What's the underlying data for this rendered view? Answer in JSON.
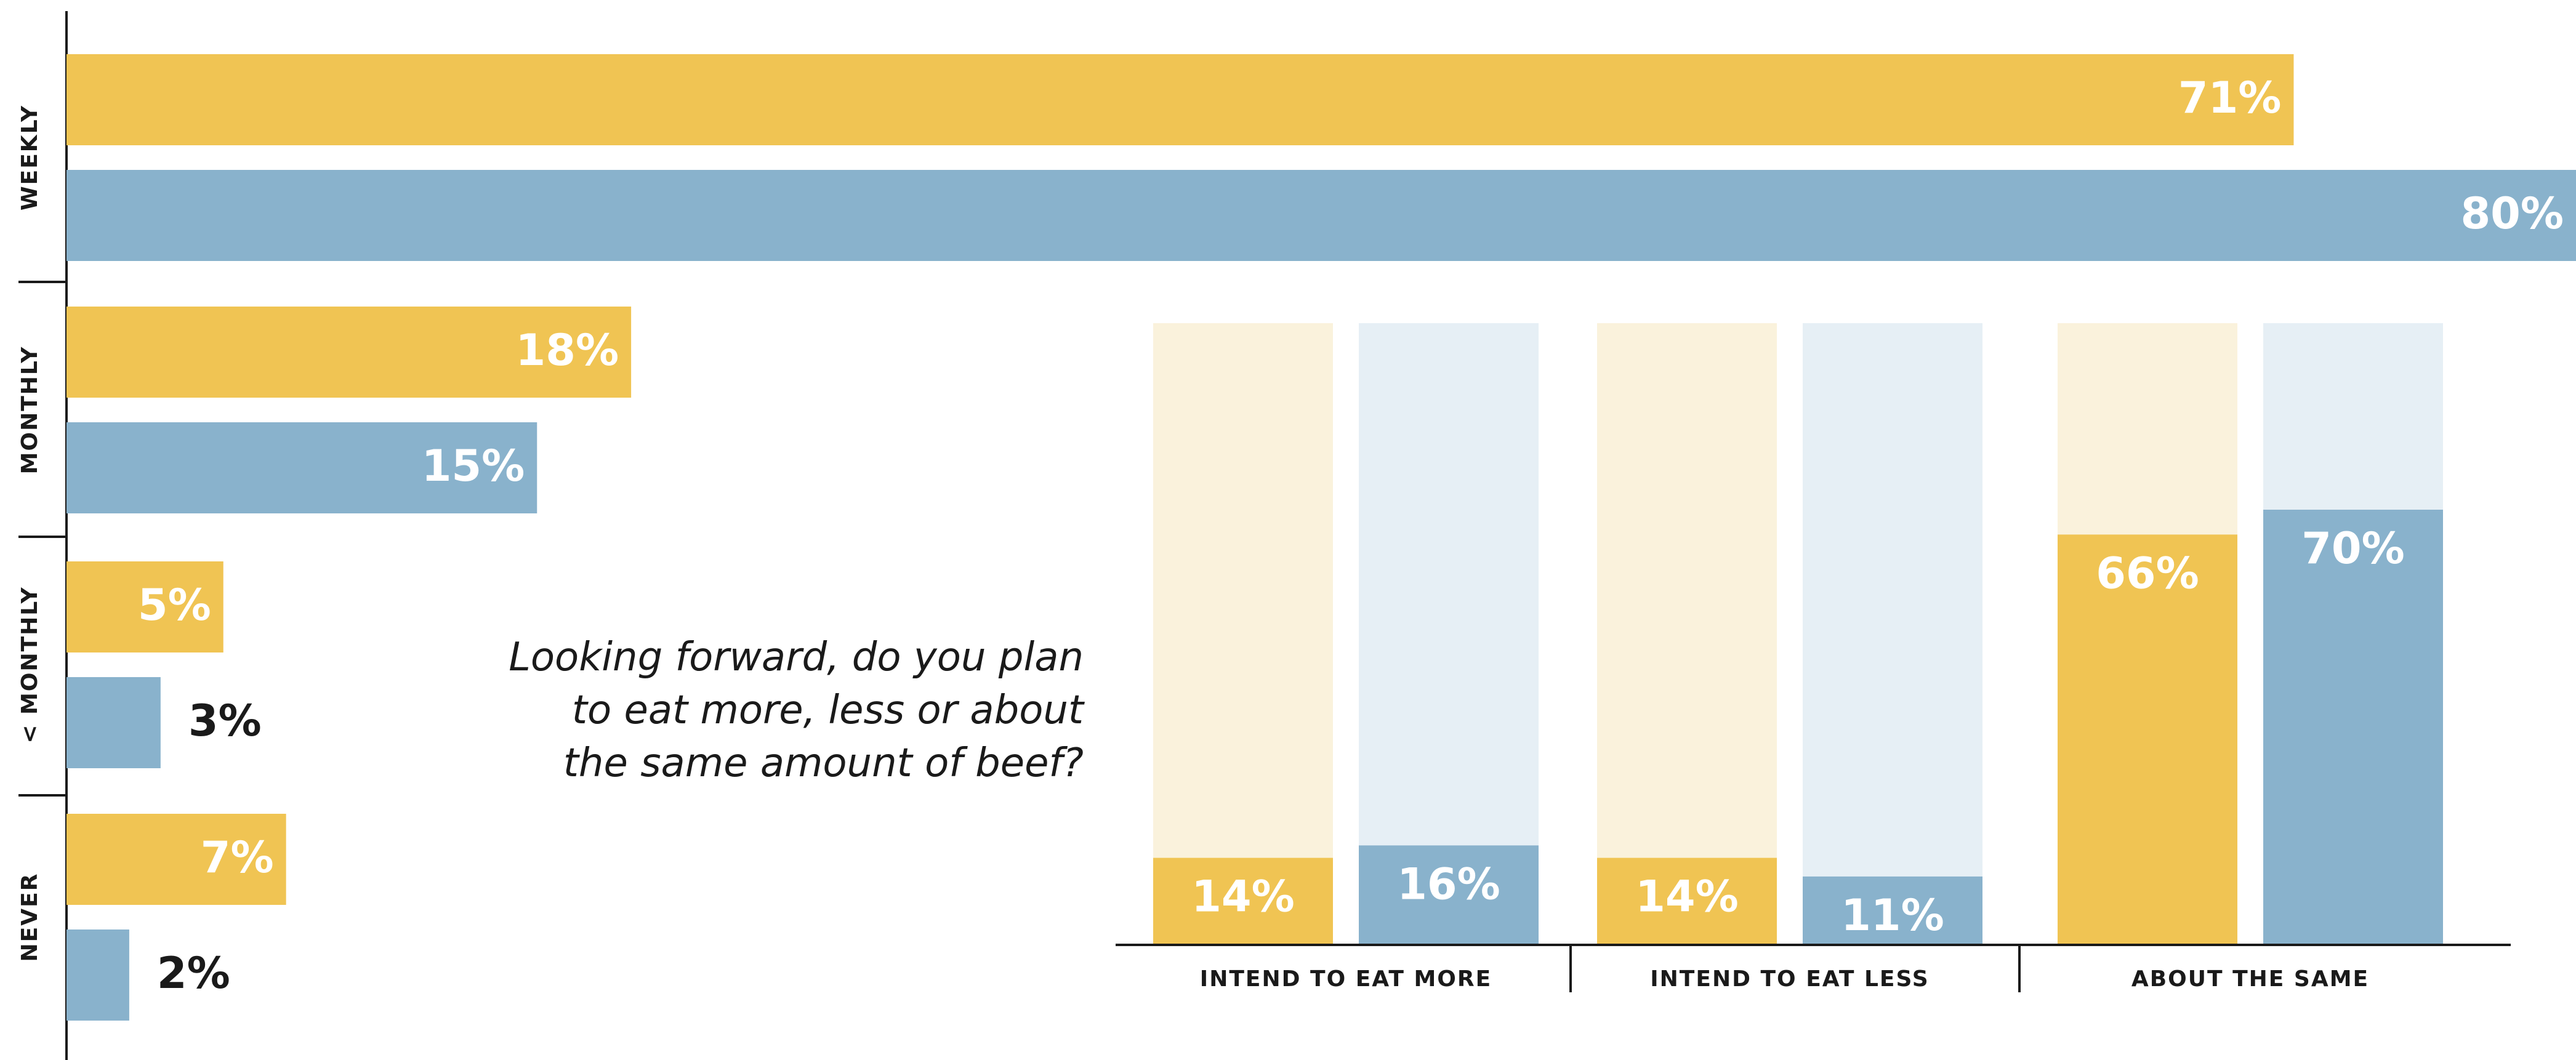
{
  "question": {
    "lines": [
      "Looking forward, do you plan",
      "to eat more, less or about",
      "the same amount of beef?"
    ]
  },
  "colors": {
    "series_a": "#f0c453",
    "series_b": "#89b2cc",
    "series_a_light": "#faf2dc",
    "series_b_light": "#e6eff5",
    "axis": "#1a1a1a",
    "label_on_bar": "#ffffff",
    "label_outside": "#1a1a1a"
  },
  "chart_data": [
    {
      "type": "bar",
      "orientation": "horizontal",
      "categories": [
        "WEEKLY",
        "MONTHLY",
        "< MONTHLY",
        "NEVER"
      ],
      "series": [
        {
          "values": [
            71,
            18,
            5,
            7
          ],
          "labels": [
            "71%",
            "18%",
            "5%",
            "7%"
          ],
          "color": "#f0c453"
        },
        {
          "values": [
            80,
            15,
            3,
            2
          ],
          "labels": [
            "80%",
            "15%",
            "3%",
            "2%"
          ],
          "color": "#89b2cc"
        }
      ],
      "xlim": [
        0,
        80
      ],
      "grid": false,
      "legend": "none"
    },
    {
      "type": "bar",
      "orientation": "vertical",
      "categories": [
        "INTEND TO EAT MORE",
        "INTEND TO EAT LESS",
        "ABOUT THE SAME"
      ],
      "series": [
        {
          "values": [
            14,
            14,
            66
          ],
          "labels": [
            "14%",
            "14%",
            "66%"
          ],
          "color": "#f0c453"
        },
        {
          "values": [
            16,
            11,
            70
          ],
          "labels": [
            "16%",
            "11%",
            "70%"
          ],
          "color": "#89b2cc"
        }
      ],
      "ylim": [
        0,
        100
      ],
      "grid": false,
      "legend": "none"
    }
  ]
}
